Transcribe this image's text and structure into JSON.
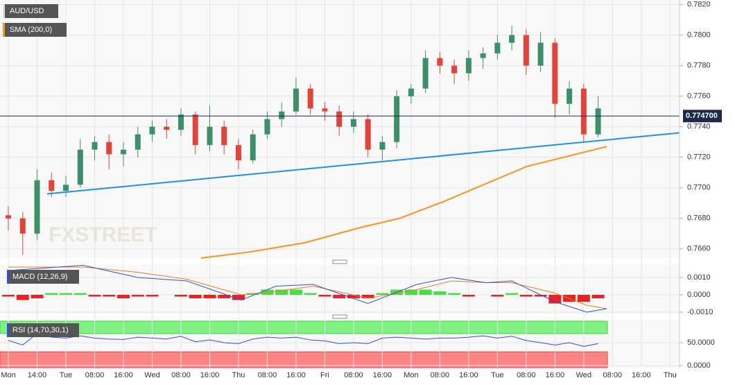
{
  "chart_data": {
    "type": "candlestick",
    "symbol": "AUD/USD",
    "sma_label": "SMA (200,0)",
    "watermark": "FXSTREET",
    "categories": [
      "Mon",
      "14:00",
      "Tue",
      "08:00",
      "16:00",
      "Wed",
      "08:00",
      "16:00",
      "Thu",
      "08:00",
      "16:00",
      "Fri",
      "08:00",
      "16:00",
      "Mon",
      "08:00",
      "16:00",
      "Tue",
      "08:00",
      "16:00",
      "Wed",
      "08:00",
      "16:00",
      "Thu"
    ],
    "xlim": [
      -0.29,
      23.33
    ],
    "grid": true,
    "up_color": "#3c8f68",
    "down_color": "#e0443a",
    "x": [
      0,
      0.5,
      1,
      1.5,
      2,
      2.5,
      3,
      3.5,
      4,
      4.5,
      5,
      5.5,
      6,
      6.5,
      7,
      7.5,
      8,
      8.5,
      9,
      9.5,
      10,
      10.5,
      11,
      11.5,
      12,
      12.5,
      13,
      13.5,
      14,
      14.5,
      15,
      15.5,
      16,
      16.5,
      17,
      17.5,
      18,
      18.5,
      19,
      19.5,
      20,
      20.5
    ],
    "open": [
      0.7682,
      0.768,
      0.767,
      0.7705,
      0.7698,
      0.7702,
      0.7725,
      0.773,
      0.7722,
      0.7725,
      0.7735,
      0.774,
      0.7738,
      0.7748,
      0.7728,
      0.774,
      0.7728,
      0.7718,
      0.7735,
      0.7745,
      0.775,
      0.7765,
      0.7752,
      0.775,
      0.774,
      0.7745,
      0.7725,
      0.773,
      0.776,
      0.7765,
      0.7785,
      0.778,
      0.7775,
      0.7785,
      0.7788,
      0.7795,
      0.78,
      0.778,
      0.7795,
      0.7755,
      0.7765,
      0.7735
    ],
    "high": [
      0.7688,
      0.7684,
      0.7712,
      0.771,
      0.7708,
      0.7732,
      0.7734,
      0.7735,
      0.773,
      0.774,
      0.7744,
      0.7745,
      0.7752,
      0.775,
      0.7754,
      0.7744,
      0.7732,
      0.7738,
      0.775,
      0.7756,
      0.7772,
      0.7768,
      0.7756,
      0.7754,
      0.775,
      0.7748,
      0.7734,
      0.7764,
      0.7768,
      0.779,
      0.7789,
      0.7784,
      0.779,
      0.7792,
      0.78,
      0.7806,
      0.7804,
      0.7802,
      0.7798,
      0.777,
      0.7768,
      0.776
    ],
    "low": [
      0.7672,
      0.7656,
      0.7666,
      0.7694,
      0.7694,
      0.77,
      0.7718,
      0.7712,
      0.7714,
      0.772,
      0.773,
      0.7732,
      0.7734,
      0.7722,
      0.7724,
      0.7722,
      0.7712,
      0.7716,
      0.7732,
      0.774,
      0.7748,
      0.7748,
      0.7744,
      0.7734,
      0.7736,
      0.772,
      0.7718,
      0.7726,
      0.7755,
      0.7762,
      0.7775,
      0.7768,
      0.777,
      0.7778,
      0.7784,
      0.779,
      0.7774,
      0.7776,
      0.7746,
      0.7748,
      0.773,
      0.7733
    ],
    "close": [
      0.768,
      0.767,
      0.7705,
      0.7698,
      0.7702,
      0.7725,
      0.773,
      0.7722,
      0.7725,
      0.7735,
      0.774,
      0.7738,
      0.7748,
      0.7728,
      0.774,
      0.7728,
      0.7718,
      0.7735,
      0.7745,
      0.775,
      0.7765,
      0.7752,
      0.775,
      0.774,
      0.7745,
      0.7725,
      0.773,
      0.776,
      0.7765,
      0.7785,
      0.778,
      0.7775,
      0.7785,
      0.7788,
      0.7795,
      0.78,
      0.778,
      0.7795,
      0.7755,
      0.7765,
      0.7735,
      0.7752
    ],
    "ylim": [
      0.7654,
      0.7823
    ],
    "yticks": [
      {
        "value": 0.766,
        "label": "0.7660"
      },
      {
        "value": 0.768,
        "label": "0.7680"
      },
      {
        "value": 0.77,
        "label": "0.7700"
      },
      {
        "value": 0.772,
        "label": "0.7720"
      },
      {
        "value": 0.774,
        "label": "0.7740"
      },
      {
        "value": 0.776,
        "label": "0.7760"
      },
      {
        "value": 0.778,
        "label": "0.7780"
      },
      {
        "value": 0.78,
        "label": "0.7800"
      },
      {
        "value": 0.782,
        "label": "0.7820"
      }
    ],
    "current_price": 0.7747,
    "current_price_label": "0.774700",
    "sma": {
      "color": "#f7931e",
      "x": [
        6.7,
        8.4,
        10.3,
        12.24,
        13.6,
        15.13,
        18.02,
        20.8
      ],
      "values": [
        0.7654,
        0.7658,
        0.7664,
        0.7674,
        0.768,
        0.7691,
        0.7714,
        0.7727
      ]
    },
    "trendline": {
      "color": "#1e90e8",
      "x": [
        1.35,
        23.33
      ],
      "values": [
        0.7696,
        0.7736
      ]
    },
    "macd": {
      "label": "MACD (12,26,9)",
      "ylim": [
        -0.00108,
        0.00172
      ],
      "yticks": [
        {
          "value": 0.001,
          "label": "0.0010"
        },
        {
          "value": 0,
          "label": "0.0000"
        },
        {
          "value": -0.001,
          "label": "-0.0010"
        }
      ],
      "histogram": [
        -0.0001,
        -0.0003,
        -0.0002,
        0.0001,
        0.0001,
        0.0001,
        -0.0001,
        -0.0001,
        -0.0002,
        -0.0001,
        -0.0001,
        0,
        -0.0001,
        -0.0002,
        -0.0002,
        -0.0002,
        -0.0003,
        0.0001,
        0.0003,
        0.0003,
        0.0003,
        0.0001,
        -0.0001,
        -0.0002,
        -0.0002,
        -0.0002,
        0.0001,
        0.0003,
        0.0003,
        0.0003,
        0.0002,
        0.0001,
        -0.0001,
        0,
        -0.0001,
        0.0001,
        -0.0001,
        -0.0001,
        -0.0005,
        -0.0004,
        -0.0004,
        -0.0002
      ],
      "line_x": [
        0,
        2.6,
        4.5,
        6.2,
        8.1,
        9.3,
        10.6,
        12.5,
        14.2,
        15.4,
        16.6,
        17.5,
        19,
        20.1,
        20.8
      ],
      "macd_color": "#3050e0",
      "macd_values": [
        0.0014,
        0.0017,
        0.001,
        0.0008,
        -0.0003,
        0.0005,
        0.0006,
        -0.0005,
        0.0006,
        0.001,
        0.0007,
        0.0008,
        -0.0004,
        -0.001,
        -0.0008
      ],
      "signal_color": "#f07a20",
      "signal_values": [
        0.0016,
        0.0016,
        0.0013,
        0.0009,
        0,
        0.0002,
        0.0005,
        -0.0002,
        0.0003,
        0.0008,
        0.0007,
        0.0007,
        0.0001,
        -0.0006,
        -0.0008
      ]
    },
    "rsi": {
      "label": "RSI (14,70,30,1)",
      "ylim": [
        -4.5,
        98.5
      ],
      "upper": 70,
      "lower": 30,
      "color": "#3050e0",
      "yticks": [
        {
          "value": 50,
          "label": "50.0000"
        },
        {
          "value": 0,
          "label": "0.0000"
        }
      ],
      "values": [
        55,
        45,
        70,
        62,
        60,
        65,
        60,
        58,
        57,
        62,
        60,
        58,
        64,
        52,
        56,
        50,
        48,
        58,
        62,
        60,
        62,
        56,
        54,
        48,
        50,
        48,
        60,
        62,
        60,
        58,
        60,
        60,
        62,
        65,
        60,
        64,
        55,
        50,
        45,
        50,
        42,
        48
      ]
    }
  }
}
